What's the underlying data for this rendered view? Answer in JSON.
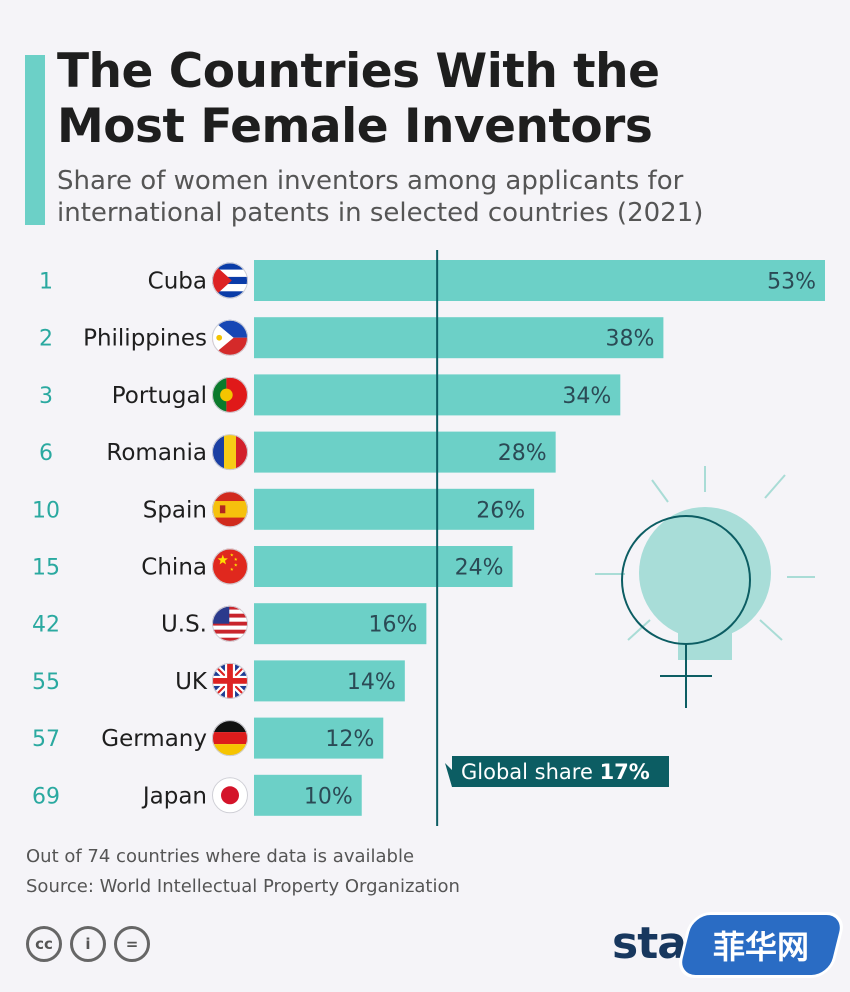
{
  "header": {
    "title": "The Countries With the Most Female Inventors",
    "subtitle": "Share of women inventors among applicants for international patents in selected countries (2021)"
  },
  "colors": {
    "accent": "#6cd0c7",
    "rank": "#2aa9a0",
    "global_line": "#0c5d63",
    "bulb_fill": "#a8ddd8"
  },
  "chart_data": {
    "type": "bar",
    "orientation": "horizontal",
    "categories": [
      "Cuba",
      "Philippines",
      "Portugal",
      "Romania",
      "Spain",
      "China",
      "U.S.",
      "UK",
      "Germany",
      "Japan"
    ],
    "ranks": [
      "1",
      "2",
      "3",
      "6",
      "10",
      "15",
      "42",
      "55",
      "57",
      "69"
    ],
    "values": [
      53,
      38,
      34,
      28,
      26,
      24,
      16,
      14,
      12,
      10
    ],
    "value_labels": [
      "53%",
      "38%",
      "34%",
      "28%",
      "26%",
      "24%",
      "16%",
      "14%",
      "12%",
      "10%"
    ],
    "flags": [
      "flag-cuba-icon",
      "flag-philippines-icon",
      "flag-portugal-icon",
      "flag-romania-icon",
      "flag-spain-icon",
      "flag-china-icon",
      "flag-us-icon",
      "flag-uk-icon",
      "flag-germany-icon",
      "flag-japan-icon"
    ],
    "reference_line": {
      "value": 17,
      "label_text": "Global share ",
      "label_value": "17%"
    },
    "xlim": [
      0,
      53
    ],
    "grid": false,
    "legend": "none"
  },
  "footer": {
    "note": "Out of 74 countries where data is available",
    "source": "Source: World Intellectual Property Organization",
    "license_icons": [
      "cc",
      "i",
      "="
    ],
    "brand": "stat",
    "watermark": "菲华网"
  }
}
